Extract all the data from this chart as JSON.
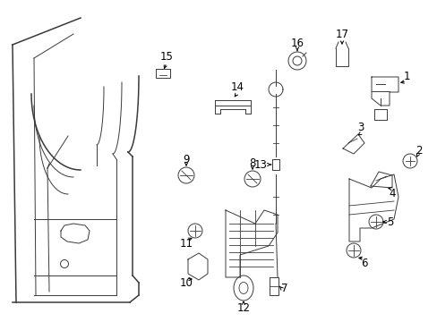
{
  "background_color": "#ffffff",
  "fig_width": 4.89,
  "fig_height": 3.6,
  "dpi": 100,
  "line_color": "#3a3a3a",
  "label_color": "#000000",
  "lw_main": 1.1,
  "lw_thin": 0.7,
  "lw_detail": 0.6,
  "fontsize_label": 8.5
}
